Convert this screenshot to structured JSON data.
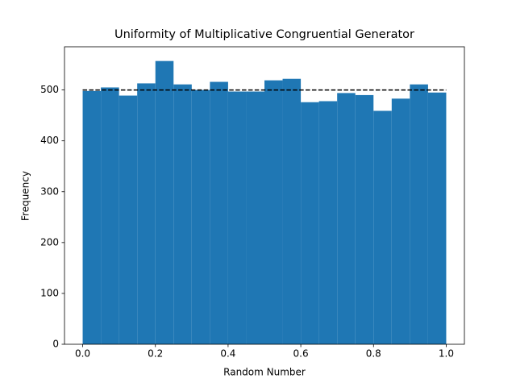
{
  "chart_data": {
    "type": "histogram",
    "title": "Uniformity of Multiplicative Congruential Generator",
    "xlabel": "Random Number",
    "ylabel": "Frequency",
    "bins": [
      0,
      0.05,
      0.1,
      0.15,
      0.2,
      0.25,
      0.3,
      0.35,
      0.4,
      0.45,
      0.5,
      0.55,
      0.6,
      0.65,
      0.7,
      0.75,
      0.8,
      0.85,
      0.9,
      0.95,
      1
    ],
    "counts": [
      498,
      505,
      489,
      513,
      557,
      511,
      500,
      516,
      497,
      497,
      519,
      522,
      476,
      478,
      494,
      490,
      459,
      483,
      511,
      495
    ],
    "color": "#1f77b4",
    "hline": {
      "y": 500,
      "x": [
        0,
        1
      ],
      "color": "#000000",
      "style": "dashed"
    },
    "xlim": [
      -0.05,
      1.05
    ],
    "xticks": [
      {
        "value": 0,
        "label": "0.0"
      },
      0.2,
      0.4,
      0.6,
      0.8,
      {
        "value": 1,
        "label": "1.0"
      }
    ],
    "ylim": [
      0,
      585
    ],
    "yticks": [
      0,
      100,
      200,
      300,
      400,
      500
    ],
    "grid": false
  }
}
